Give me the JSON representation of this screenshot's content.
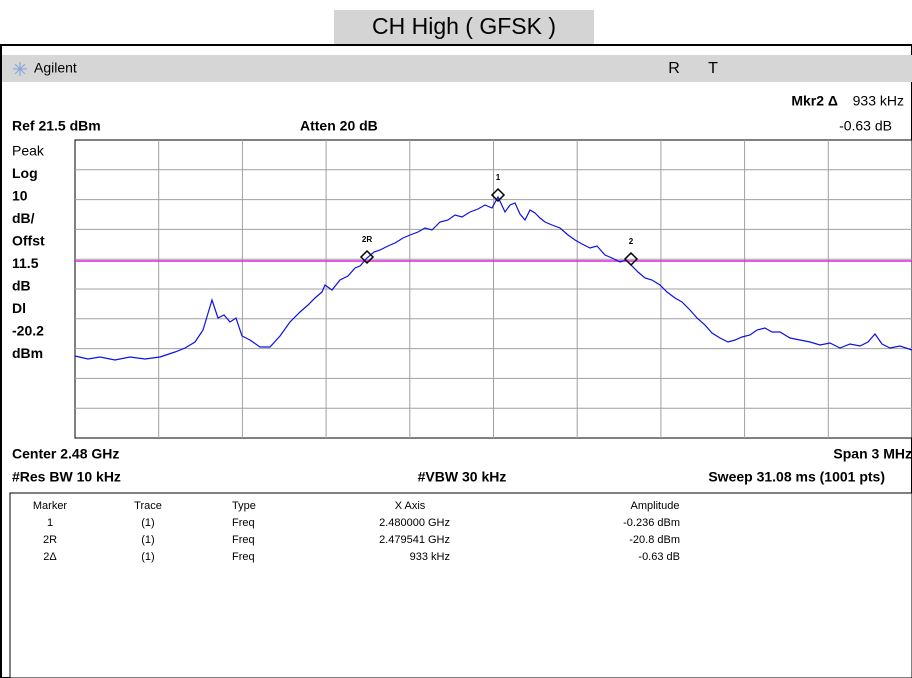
{
  "title": "CH High ( GFSK )",
  "header": {
    "brand": "Agilent",
    "status_r": "R",
    "status_t": "T"
  },
  "readouts": {
    "marker_label": "Mkr2 Δ",
    "marker_freq": "933 kHz",
    "ref": "Ref 21.5 dBm",
    "atten": "Atten 20 dB",
    "marker_amp": "-0.63 dB"
  },
  "left_labels": [
    "Peak",
    "Log",
    "10",
    "dB/",
    "Offst",
    "11.5",
    "dB",
    "Dl",
    "-20.2",
    "dBm"
  ],
  "trace_markers": [
    "1",
    "2R",
    "2"
  ],
  "footer": {
    "center": "Center 2.48 GHz",
    "span": "Span 3 MHz",
    "res_bw": "#Res BW 10 kHz",
    "vbw": "#VBW 30 kHz",
    "sweep": "Sweep 31.08 ms (1001 pts)"
  },
  "table": {
    "headers": [
      "Marker",
      "Trace",
      "Type",
      "X Axis",
      "Amplitude"
    ],
    "rows": [
      [
        "1",
        "(1)",
        "Freq",
        "2.480000 GHz",
        "-0.236 dBm"
      ],
      [
        "2R",
        "(1)",
        "Freq",
        "2.479541 GHz",
        "-20.8 dBm"
      ],
      [
        "2Δ",
        "(1)",
        "Freq",
        "933 kHz",
        "-0.63 dB"
      ]
    ]
  }
}
